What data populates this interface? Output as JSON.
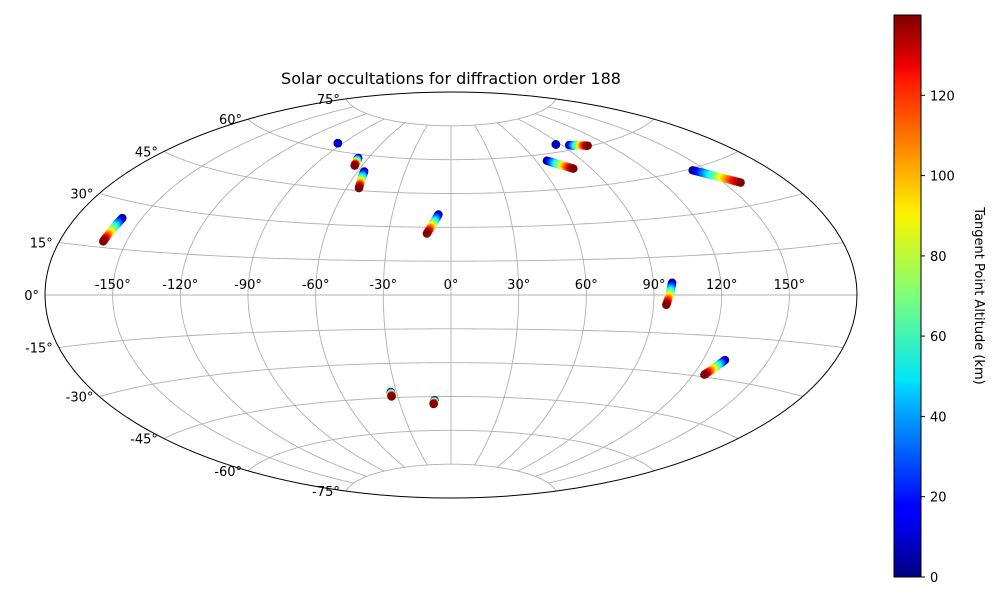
{
  "chart_data": {
    "type": "scatter",
    "projection": "aitoff",
    "title": "Solar occultations for diffraction order 188",
    "grid": true,
    "lon_ticks": [
      -150,
      -120,
      -90,
      -60,
      -30,
      0,
      30,
      60,
      90,
      120,
      150
    ],
    "lon_tick_labels": [
      "-150°",
      "-120°",
      "-90°",
      "-60°",
      "-30°",
      "0°",
      "30°",
      "60°",
      "90°",
      "120°",
      "150°"
    ],
    "lat_ticks": [
      -75,
      -60,
      -45,
      -30,
      -15,
      0,
      15,
      30,
      45,
      60,
      75
    ],
    "lat_tick_labels": [
      "-75°",
      "-60°",
      "-45°",
      "-30°",
      "-15°",
      "0°",
      "15°",
      "30°",
      "45°",
      "60°",
      "75°"
    ],
    "colorbar": {
      "label": "Tangent Point Altitude (km)",
      "colormap": "jet",
      "range": [
        0,
        140
      ],
      "ticks": [
        0,
        20,
        40,
        60,
        80,
        100,
        120
      ],
      "tick_labels": [
        "0",
        "20",
        "40",
        "60",
        "80",
        "100",
        "120"
      ]
    },
    "tracks": [
      {
        "start": [
          -158.9,
          24.7
        ],
        "end": [
          -160.5,
          16.9
        ],
        "alt_range": [
          0,
          140
        ]
      },
      {
        "start": [
          -93.5,
          62.9
        ],
        "end": [
          -93.5,
          62.9
        ],
        "alt_range": [
          0,
          10
        ]
      },
      {
        "start": [
          -67.0,
          58.5
        ],
        "end": [
          -64.8,
          55.2
        ],
        "alt_range": [
          0,
          140
        ]
      },
      {
        "start": [
          -56.0,
          53.2
        ],
        "end": [
          -53.0,
          46.0
        ],
        "alt_range": [
          0,
          140
        ]
      },
      {
        "start": [
          -6.4,
          35.7
        ],
        "end": [
          -11.6,
          27.2
        ],
        "alt_range": [
          0,
          140
        ]
      },
      {
        "start": [
          67.3,
          57.2
        ],
        "end": [
          79.3,
          52.8
        ],
        "alt_range": [
          0,
          140
        ]
      },
      {
        "start": [
          86.3,
          63.0
        ],
        "end": [
          86.3,
          63.0
        ],
        "alt_range": [
          0,
          10
        ]
      },
      {
        "start": [
          95.1,
          61.9
        ],
        "end": [
          106.8,
          60.3
        ],
        "alt_range": [
          0,
          140
        ]
      },
      {
        "start": [
          143.2,
          44.4
        ],
        "end": [
          158.0,
          37.3
        ],
        "alt_range": [
          0,
          140
        ]
      },
      {
        "start": [
          98.3,
          4.8
        ],
        "end": [
          95.6,
          -3.9
        ],
        "alt_range": [
          0,
          140
        ]
      },
      {
        "start": [
          130.2,
          -23.3
        ],
        "end": [
          125.3,
          -29.2
        ],
        "alt_range": [
          0,
          140
        ]
      },
      {
        "start": [
          -33.0,
          -42.5
        ],
        "end": [
          -33.4,
          -44.5
        ],
        "alt_range": [
          0,
          140
        ]
      },
      {
        "start": [
          -9.5,
          -46.6
        ],
        "end": [
          -10.3,
          -48.3
        ],
        "alt_range": [
          0,
          140
        ]
      }
    ]
  }
}
